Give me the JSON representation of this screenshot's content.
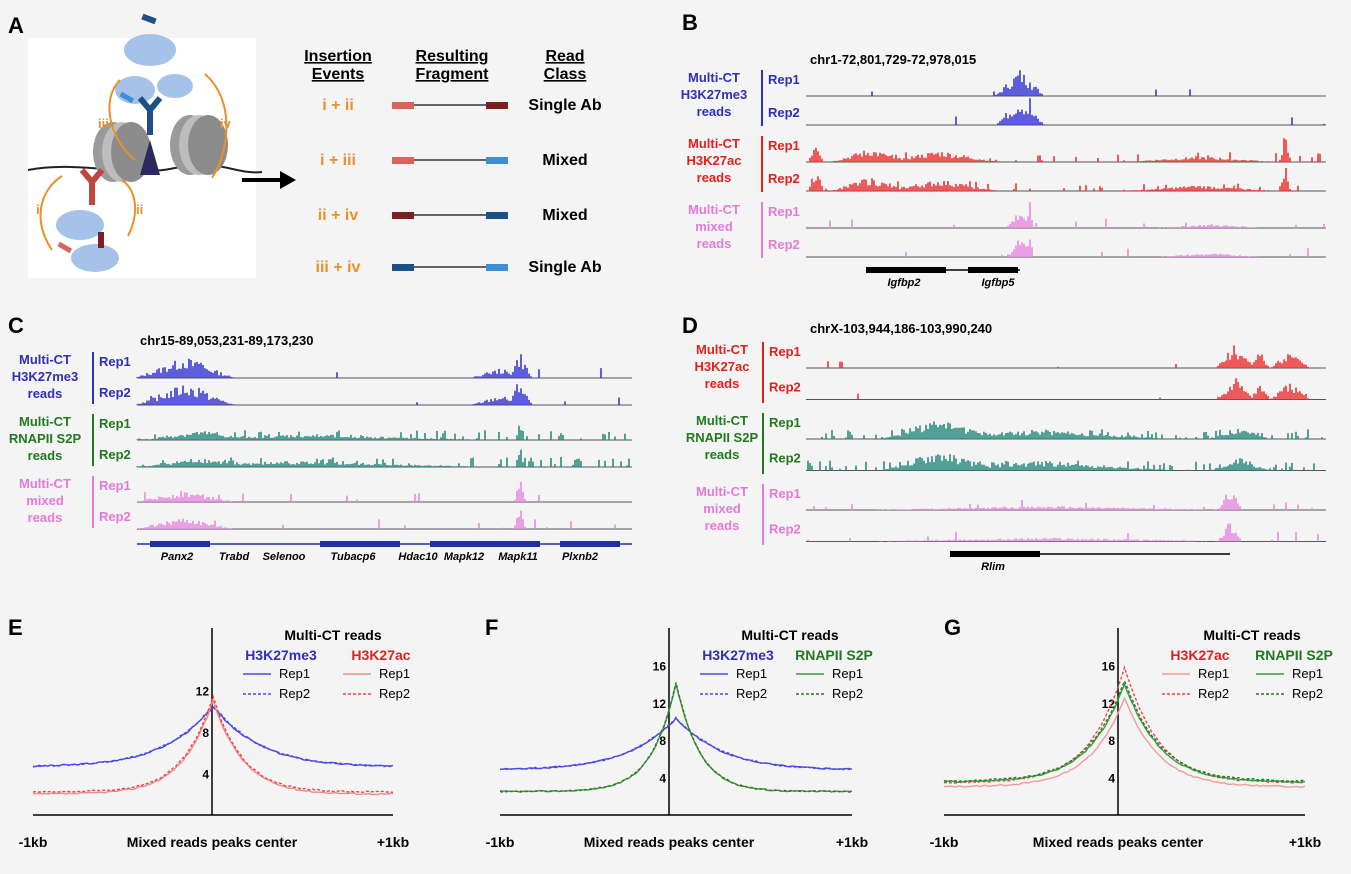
{
  "panels": {
    "A": {
      "letter": "A",
      "headers": [
        [
          "Insertion",
          "Events"
        ],
        [
          "Resulting",
          "Fragment"
        ],
        [
          "Read",
          "Class"
        ]
      ],
      "rows": [
        {
          "event": "i + ii",
          "cls": "Single Ab",
          "left": "#d9635e",
          "right": "#7a1f22"
        },
        {
          "event": "i + iii",
          "cls": "Mixed",
          "left": "#d9635e",
          "right": "#3d8fd6"
        },
        {
          "event": "ii + iv",
          "cls": "Mixed",
          "left": "#7a1f22",
          "right": "#1e4f87"
        },
        {
          "event": "iii + iv",
          "cls": "Single Ab",
          "left": "#1e4f87",
          "right": "#3d8fd6"
        }
      ],
      "roman": [
        "i",
        "ii",
        "iii",
        "iv"
      ]
    },
    "B": {
      "letter": "B",
      "coord": "chr1-72,801,729-72,978,015",
      "groups": [
        {
          "name": [
            "Multi-CT",
            "H3K27me3",
            "reads"
          ],
          "color": "#2f2fb8",
          "track": "#3838d4",
          "reps": [
            "Rep1",
            "Rep2"
          ]
        },
        {
          "name": [
            "Multi-CT",
            "H3K27ac",
            "reads"
          ],
          "color": "#e2201c",
          "track": "#ec3232",
          "reps": [
            "Rep1",
            "Rep2"
          ]
        },
        {
          "name": [
            "Multi-CT",
            "mixed",
            "reads"
          ],
          "color": "#e37ad9",
          "track": "#e88ae1",
          "reps": [
            "Rep1",
            "Rep2"
          ]
        }
      ],
      "genes": [
        "Igfbp2",
        "Igfbp5"
      ]
    },
    "C": {
      "letter": "C",
      "coord": "chr15-89,053,231-89,173,230",
      "groups": [
        {
          "name": [
            "Multi-CT",
            "H3K27me3",
            "reads"
          ],
          "color": "#2f2fb8",
          "track": "#3838d4",
          "reps": [
            "Rep1",
            "Rep2"
          ]
        },
        {
          "name": [
            "Multi-CT",
            "RNAPII S2P",
            "reads"
          ],
          "color": "#1f7a1f",
          "track": "#2a8a80",
          "reps": [
            "Rep1",
            "Rep2"
          ]
        },
        {
          "name": [
            "Multi-CT",
            "mixed",
            "reads"
          ],
          "color": "#e37ad9",
          "track": "#e88ae1",
          "reps": [
            "Rep1",
            "Rep2"
          ]
        }
      ],
      "genes": [
        "Panx2",
        "Trabd",
        "Selenoo",
        "Tubacp6",
        "Hdac10",
        "Mapk12",
        "Mapk11",
        "Plxnb2"
      ]
    },
    "D": {
      "letter": "D",
      "coord": "chrX-103,944,186-103,990,240",
      "groups": [
        {
          "name": [
            "Multi-CT",
            "H3K27ac",
            "reads"
          ],
          "color": "#e2201c",
          "track": "#ec3232",
          "reps": [
            "Rep1",
            "Rep2"
          ]
        },
        {
          "name": [
            "Multi-CT",
            "RNAPII S2P",
            "reads"
          ],
          "color": "#1f7a1f",
          "track": "#2a8a80",
          "reps": [
            "Rep1",
            "Rep2"
          ]
        },
        {
          "name": [
            "Multi-CT",
            "mixed",
            "reads"
          ],
          "color": "#e37ad9",
          "track": "#e88ae1",
          "reps": [
            "Rep1",
            "Rep2"
          ]
        }
      ],
      "genes": [
        "Rlim"
      ]
    },
    "E": {
      "letter": "E"
    },
    "F": {
      "letter": "F"
    },
    "G": {
      "letter": "G"
    }
  },
  "chart_data": [
    {
      "panel": "E",
      "type": "line",
      "title": "Multi-CT reads",
      "xlabel": "Mixed reads peaks center",
      "xtick_labels": [
        "-1kb",
        "+1kb"
      ],
      "yticks": [
        4,
        8,
        12
      ],
      "ylim": [
        0,
        18
      ],
      "groups": [
        {
          "name": "H3K27me3",
          "color": "#2f2fb8"
        },
        {
          "name": "H3K27ac",
          "color": "#e2201c"
        }
      ],
      "series": [
        {
          "name": "Rep1",
          "group": "H3K27me3",
          "color": "#4a4ae0",
          "dash": false,
          "params": [
            4.6,
            5.8,
            1
          ]
        },
        {
          "name": "Rep2",
          "group": "H3K27me3",
          "color": "#4a4ae0",
          "dash": true,
          "params": [
            4.6,
            5.9,
            1
          ]
        },
        {
          "name": "Rep1",
          "group": "H3K27ac",
          "color": "#f08a8a",
          "dash": false,
          "params": [
            2.0,
            9.0,
            0.62
          ]
        },
        {
          "name": "Rep2",
          "group": "H3K27ac",
          "color": "#ec4444",
          "dash": true,
          "params": [
            2.2,
            9.2,
            0.6
          ]
        }
      ]
    },
    {
      "panel": "F",
      "type": "line",
      "title": "Multi-CT reads",
      "xlabel": "Mixed reads peaks center",
      "xtick_labels": [
        "-1kb",
        "+1kb"
      ],
      "yticks": [
        4,
        8,
        12,
        16
      ],
      "ylim": [
        0,
        20
      ],
      "groups": [
        {
          "name": "H3K27me3",
          "color": "#2f2fb8"
        },
        {
          "name": "RNAPII S2P",
          "color": "#1f7a1f"
        }
      ],
      "series": [
        {
          "name": "Rep1",
          "group": "H3K27me3",
          "color": "#4a4ae0",
          "dash": false,
          "params": [
            4.8,
            5.5,
            1
          ]
        },
        {
          "name": "Rep2",
          "group": "H3K27me3",
          "color": "#4a4ae0",
          "dash": true,
          "params": [
            4.8,
            5.6,
            1
          ]
        },
        {
          "name": "Rep1",
          "group": "RNAPII S2P",
          "color": "#3d9a3d",
          "dash": false,
          "params": [
            2.5,
            11.5,
            0.5
          ]
        },
        {
          "name": "Rep2",
          "group": "RNAPII S2P",
          "color": "#2a7a2a",
          "dash": true,
          "params": [
            2.5,
            11.7,
            0.5
          ]
        }
      ]
    },
    {
      "panel": "G",
      "type": "line",
      "title": "Multi-CT reads",
      "xlabel": "Mixed reads peaks center",
      "xtick_labels": [
        "-1kb",
        "+1kb"
      ],
      "yticks": [
        4,
        8,
        12,
        16
      ],
      "ylim": [
        0,
        20
      ],
      "groups": [
        {
          "name": "H3K27ac",
          "color": "#e2201c"
        },
        {
          "name": "RNAPII S2P",
          "color": "#1f7a1f"
        }
      ],
      "series": [
        {
          "name": "Rep1",
          "group": "H3K27ac",
          "color": "#f29a9a",
          "dash": false,
          "params": [
            3.0,
            9.5,
            0.7
          ]
        },
        {
          "name": "Rep2",
          "group": "H3K27ac",
          "color": "#ec4444",
          "dash": true,
          "params": [
            3.4,
            12.4,
            0.7
          ]
        },
        {
          "name": "Rep1",
          "group": "RNAPII S2P",
          "color": "#3d9a3d",
          "dash": false,
          "params": [
            3.5,
            10.5,
            0.72
          ]
        },
        {
          "name": "Rep2",
          "group": "RNAPII S2P",
          "color": "#2a7a2a",
          "dash": true,
          "params": [
            3.6,
            10.8,
            0.72
          ]
        }
      ]
    }
  ]
}
